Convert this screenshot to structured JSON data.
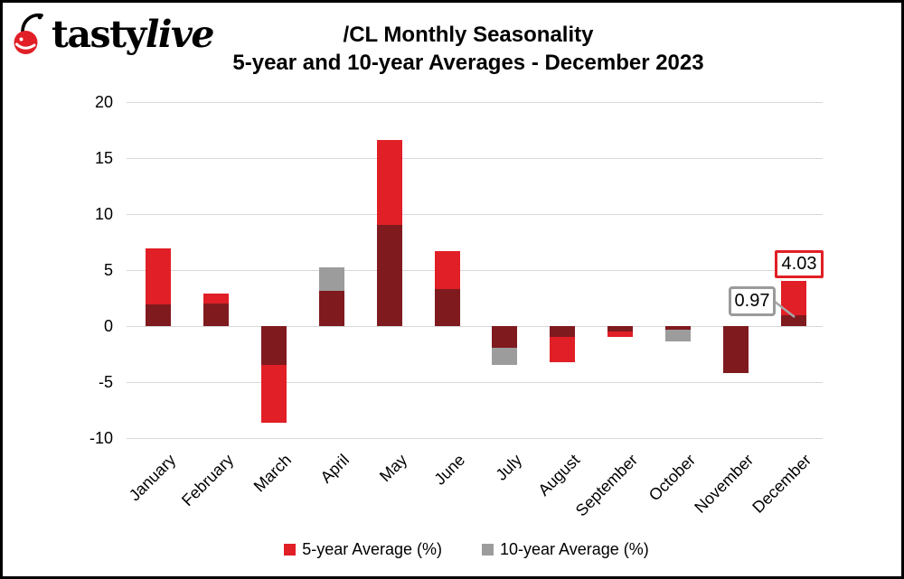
{
  "logo": {
    "brand_first": "tasty",
    "brand_second": "live"
  },
  "title": {
    "line1": "/CL Monthly Seasonality",
    "line2": "5-year and 10-year Averages - December 2023"
  },
  "chart_data": {
    "type": "bar",
    "title": "/CL Monthly Seasonality",
    "subtitle": "5-year and 10-year Averages - December 2023",
    "categories": [
      "January",
      "February",
      "March",
      "April",
      "May",
      "June",
      "July",
      "August",
      "September",
      "October",
      "November",
      "December"
    ],
    "series": [
      {
        "name": "5-year Average (%)",
        "color": "#e11f26",
        "values": [
          6.9,
          2.9,
          -8.6,
          3.1,
          16.6,
          6.7,
          -1.9,
          -3.2,
          -1.0,
          -0.3,
          -4.2,
          4.03
        ]
      },
      {
        "name": "10-year Average (%)",
        "color": "#9c9c9c",
        "values": [
          1.9,
          2.0,
          -3.5,
          5.2,
          9.0,
          3.3,
          -3.5,
          -1.0,
          -0.45,
          -1.4,
          -4.2,
          0.97
        ]
      }
    ],
    "overlap_color": "#7f1a1f",
    "xlabel": "",
    "ylabel": "",
    "ylim": [
      -10,
      20
    ],
    "yticks": [
      20,
      15,
      10,
      5,
      0,
      -5,
      -10
    ],
    "grid": "horizontal",
    "gridline_color": "#d8d8d8",
    "legend_position": "bottom",
    "annotations": [
      {
        "label": "0.97",
        "series": "10-year Average (%)",
        "category": "December",
        "value": 0.97,
        "box_color": "#9b9b9b"
      },
      {
        "label": "4.03",
        "series": "5-year Average (%)",
        "category": "December",
        "value": 4.03,
        "box_color": "#e11f26"
      }
    ]
  },
  "legend": {
    "items": [
      {
        "label": "5-year Average (%)",
        "color": "#e11f26"
      },
      {
        "label": "10-year Average (%)",
        "color": "#9c9c9c"
      }
    ]
  }
}
